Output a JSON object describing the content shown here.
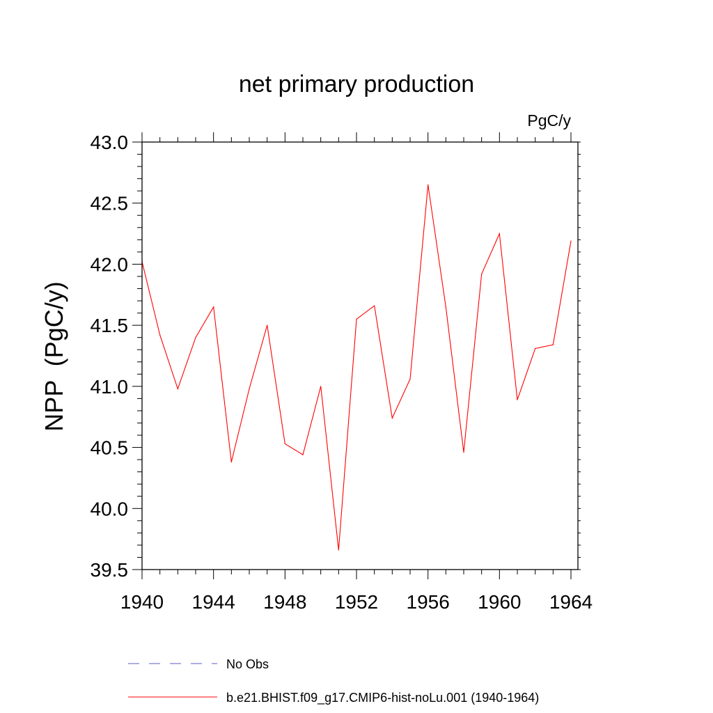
{
  "chart_data": {
    "type": "line",
    "title": "net primary production",
    "units": "PgC/y",
    "ylabel": "NPP  (PgC/y)",
    "xlabel": "",
    "xlim": [
      1940,
      1964
    ],
    "ylim": [
      39.5,
      43.0
    ],
    "xticks": [
      1940,
      1944,
      1948,
      1952,
      1956,
      1960,
      1964
    ],
    "yticks": [
      "39.5",
      "40.0",
      "40.5",
      "41.0",
      "41.5",
      "42.0",
      "42.5",
      "43.0"
    ],
    "grid": false,
    "series": [
      {
        "name": "b.e21.BHIST.f09_g17.CMIP6-hist-noLu.001 (1940-1964)",
        "color": "#ff0000",
        "x": [
          1940,
          1941,
          1942,
          1943,
          1944,
          1945,
          1946,
          1947,
          1948,
          1949,
          1950,
          1951,
          1952,
          1953,
          1954,
          1955,
          1956,
          1957,
          1958,
          1959,
          1960,
          1961,
          1962,
          1963,
          1964
        ],
        "y": [
          42.02,
          41.42,
          40.98,
          41.4,
          41.65,
          40.38,
          40.98,
          41.5,
          40.53,
          40.44,
          41.0,
          39.66,
          41.55,
          41.66,
          40.74,
          41.06,
          42.65,
          41.65,
          40.46,
          41.92,
          42.25,
          40.89,
          41.31,
          41.34,
          42.19
        ]
      }
    ],
    "legend": {
      "position": "bottom",
      "entries": [
        {
          "label": "No Obs",
          "style": "dashed",
          "color": "#5b5bc8"
        },
        {
          "label": "b.e21.BHIST.f09_g17.CMIP6-hist-noLu.001 (1940-1964)",
          "style": "solid",
          "color": "#ff0000"
        }
      ]
    }
  }
}
